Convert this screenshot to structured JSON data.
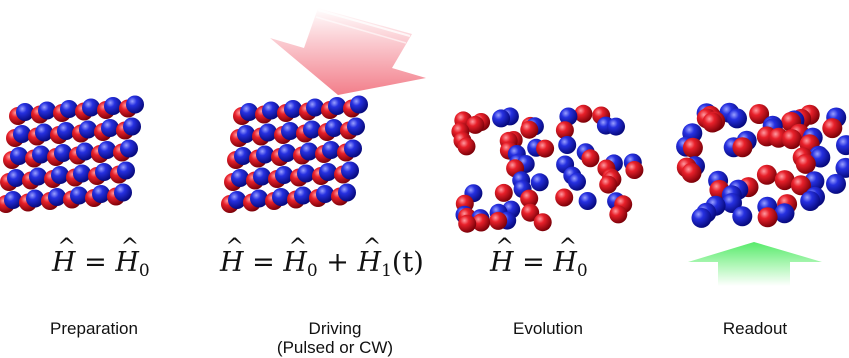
{
  "stages": [
    {
      "id": "preparation",
      "label": "Preparation",
      "subtitle": "",
      "eq": {
        "lhs": "H",
        "rhs": "H",
        "sub": "0",
        "extra": ""
      }
    },
    {
      "id": "driving",
      "label": "Driving",
      "subtitle": "(Pulsed or CW)",
      "eq": {
        "lhs": "H",
        "rhs": "H",
        "sub": "0",
        "extra": "H",
        "extra_sub": "1",
        "extra_arg": "(t)"
      }
    },
    {
      "id": "evolution",
      "label": "Evolution",
      "subtitle": "",
      "eq": {
        "lhs": "H",
        "rhs": "H",
        "sub": "0",
        "extra": ""
      }
    },
    {
      "id": "readout",
      "label": "Readout",
      "subtitle": ""
    }
  ],
  "colors": {
    "red": "#e0141e",
    "blue": "#1c22d6",
    "drive_arrow": "#f48f99",
    "readout_arrow": "#6ef07e"
  }
}
